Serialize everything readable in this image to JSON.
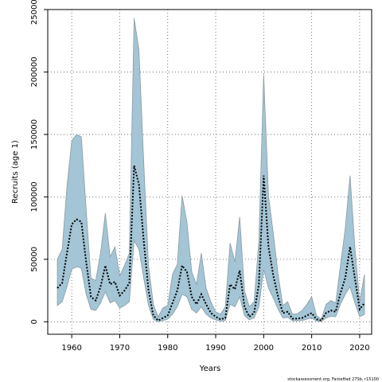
{
  "chart_data": {
    "type": "area",
    "xlabel": "Years",
    "ylabel": "Recruits (age 1)",
    "xlim": [
      1955,
      2022.5
    ],
    "ylim": [
      -10000,
      250000
    ],
    "x_ticks": [
      1960,
      1970,
      1980,
      1990,
      2000,
      2010,
      2020
    ],
    "x_tick_labels": [
      "1960",
      "1970",
      "1980",
      "1990",
      "2000",
      "2010",
      "2020"
    ],
    "y_ticks": [
      0,
      50000,
      100000,
      150000,
      200000,
      250000
    ],
    "y_tick_labels": [
      "0",
      "50000",
      "100000",
      "150000",
      "200000",
      "250000"
    ],
    "grid": true,
    "colors": {
      "band_fill": "#a3c5d5",
      "band_edge": "#8a9aa3",
      "line": "#000000",
      "grid": "#555555"
    },
    "x": [
      1957,
      1958,
      1959,
      1960,
      1961,
      1962,
      1963,
      1964,
      1965,
      1966,
      1967,
      1968,
      1969,
      1970,
      1971,
      1972,
      1973,
      1974,
      1975,
      1976,
      1977,
      1978,
      1979,
      1980,
      1981,
      1982,
      1983,
      1984,
      1985,
      1986,
      1987,
      1988,
      1989,
      1990,
      1991,
      1992,
      1993,
      1994,
      1995,
      1996,
      1997,
      1998,
      1999,
      2000,
      2001,
      2002,
      2003,
      2004,
      2005,
      2006,
      2007,
      2008,
      2009,
      2010,
      2011,
      2012,
      2013,
      2014,
      2015,
      2016,
      2017,
      2018,
      2019,
      2020,
      2021
    ],
    "series": [
      {
        "values": [
          27000,
          31000,
          55000,
          78000,
          82000,
          80000,
          48000,
          20000,
          17000,
          28000,
          45000,
          30000,
          32000,
          21000,
          25000,
          31000,
          125000,
          110000,
          65000,
          25000,
          5000,
          1000,
          3000,
          5000,
          15000,
          25000,
          45000,
          40000,
          20000,
          14000,
          22000,
          14000,
          7000,
          4000,
          2000,
          3000,
          30000,
          26000,
          41000,
          12000,
          4000,
          7000,
          30000,
          117000,
          60000,
          37000,
          20000,
          7000,
          8000,
          2500,
          2500,
          3000,
          5000,
          7000,
          2000,
          1000,
          7000,
          9000,
          8000,
          23000,
          35000,
          60000,
          35000,
          10000,
          15000
        ],
        "lower": [
          13000,
          16000,
          28000,
          42000,
          44000,
          43000,
          22000,
          10000,
          9000,
          15000,
          24000,
          15000,
          17000,
          11000,
          13000,
          16000,
          65000,
          58000,
          35000,
          13000,
          2000,
          0,
          1000,
          2000,
          6000,
          12000,
          22000,
          20000,
          10000,
          7000,
          12000,
          6000,
          3000,
          1500,
          500,
          800,
          14000,
          12000,
          20000,
          5000,
          1500,
          3000,
          12000,
          42000,
          27000,
          19000,
          10000,
          3000,
          3500,
          800,
          800,
          1000,
          2000,
          3000,
          500,
          200,
          3000,
          4500,
          4000,
          14000,
          22000,
          28000,
          15000,
          4000,
          6000
        ],
        "upper": [
          50000,
          58000,
          108000,
          145000,
          150000,
          148000,
          90000,
          35000,
          33000,
          55000,
          87000,
          52000,
          60000,
          37000,
          45000,
          55000,
          243000,
          218000,
          128000,
          45000,
          14000,
          4000,
          11000,
          13000,
          38000,
          46000,
          101000,
          80000,
          40000,
          30000,
          55000,
          27000,
          16000,
          8000,
          6000,
          12000,
          63000,
          48000,
          84000,
          25000,
          12000,
          16000,
          65000,
          198000,
          101000,
          71000,
          38000,
          13000,
          16000,
          6000,
          6500,
          9000,
          14000,
          20000,
          5000,
          2000,
          14000,
          17000,
          15000,
          45000,
          75000,
          117000,
          60000,
          16000,
          38000
        ]
      }
    ],
    "credit": "stockassessment.org, FaroeHad 27Sb, r15100"
  }
}
